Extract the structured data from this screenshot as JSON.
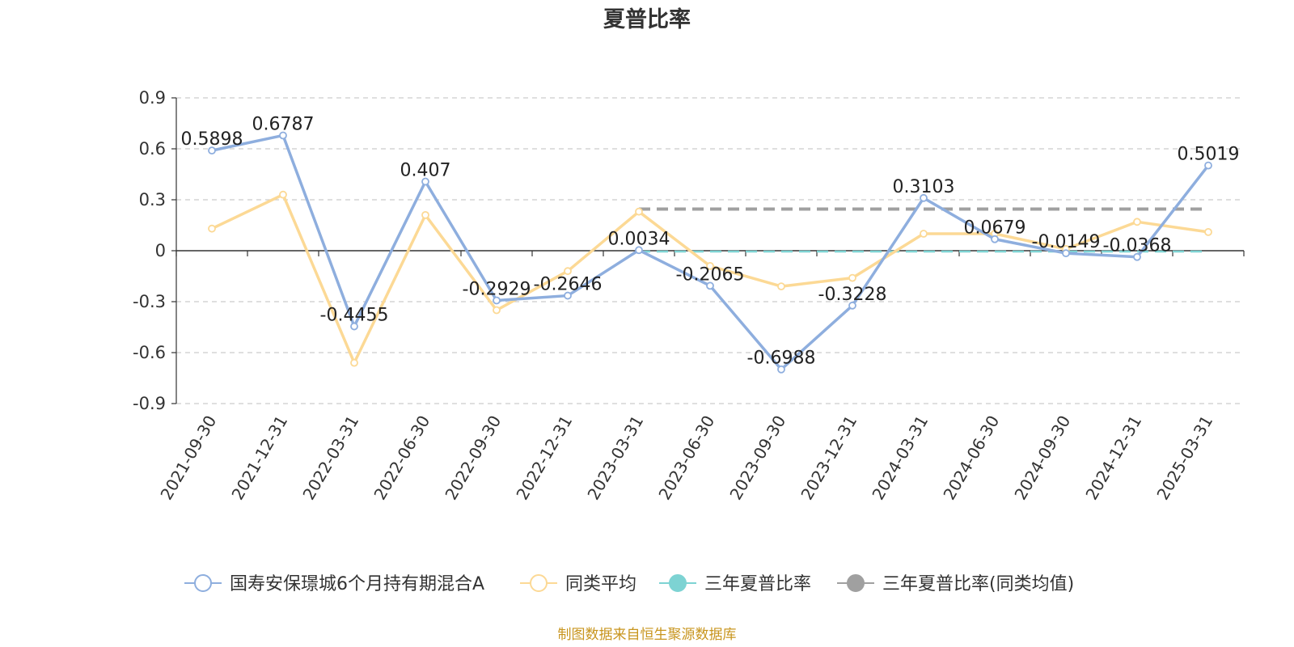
{
  "title": "夏普比率",
  "source": "制图数据来自恒生聚源数据库",
  "colors": {
    "fund": "#8eaede",
    "avg": "#fcd995",
    "three_year": "#7dd3d3",
    "three_year_avg": "#a0a0a0",
    "source_text": "#c8951e"
  },
  "chart_data": {
    "type": "line",
    "title": "夏普比率",
    "categories": [
      "2021-09-30",
      "2021-12-31",
      "2022-03-31",
      "2022-06-30",
      "2022-09-30",
      "2022-12-31",
      "2023-03-31",
      "2023-06-30",
      "2023-09-30",
      "2023-12-31",
      "2024-03-31",
      "2024-06-30",
      "2024-09-30",
      "2024-12-31",
      "2025-03-31"
    ],
    "ylim": [
      -0.9,
      0.9
    ],
    "yticks": [
      "0.9",
      "0.6",
      "0.3",
      "0",
      "-0.3",
      "-0.6",
      "-0.9"
    ],
    "grid": true,
    "legend_position": "bottom",
    "series": [
      {
        "name": "国寿安保璟城6个月持有期混合A",
        "values": [
          0.5898,
          0.6787,
          -0.4455,
          0.407,
          -0.2929,
          -0.2646,
          0.0034,
          -0.2065,
          -0.6988,
          -0.3228,
          0.3103,
          0.0679,
          -0.0149,
          -0.0368,
          0.5019
        ],
        "labels": [
          "0.5898",
          "0.6787",
          "-0.4455",
          "0.407",
          "-0.2929",
          "-0.2646",
          "0.0034",
          "-0.2065",
          "-0.6988",
          "-0.3228",
          "0.3103",
          "0.0679",
          "-0.0149",
          "-0.0368",
          "0.5019"
        ]
      },
      {
        "name": "同类平均",
        "values": [
          0.13,
          0.33,
          -0.66,
          0.21,
          -0.35,
          -0.12,
          0.23,
          -0.09,
          -0.21,
          -0.16,
          0.1,
          0.1,
          0.01,
          0.17,
          0.11
        ]
      },
      {
        "name": "三年夏普比率",
        "from_index": 6,
        "value": -0.005
      },
      {
        "name": "三年夏普比率(同类均值)",
        "from_index": 6,
        "value": 0.245
      }
    ]
  }
}
